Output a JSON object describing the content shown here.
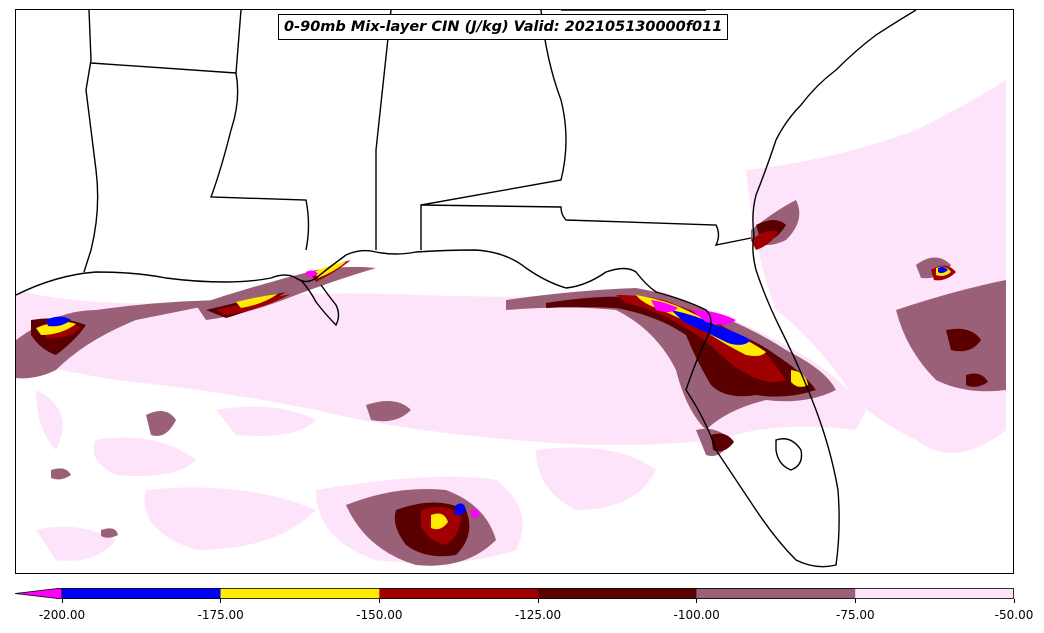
{
  "title": "0-90mb Mix-layer CIN (J/kg) Valid: 202105130000f011",
  "colorbar": {
    "extend_color": "#ff00ff",
    "bins": [
      {
        "from": -200,
        "to": -175,
        "color": "#0000ff"
      },
      {
        "from": -175,
        "to": -150,
        "color": "#ffea00"
      },
      {
        "from": -150,
        "to": -125,
        "color": "#a00000"
      },
      {
        "from": -125,
        "to": -100,
        "color": "#5a0000"
      },
      {
        "from": -100,
        "to": -75,
        "color": "#9a6078"
      },
      {
        "from": -75,
        "to": -50,
        "color": "#fde4fa"
      }
    ],
    "ticks": [
      "-200.00",
      "-175.00",
      "-150.00",
      "-125.00",
      "-100.00",
      "-75.00",
      "-50.00"
    ]
  },
  "colors": {
    "blue": "#0000ff",
    "yellow": "#ffea00",
    "red": "#a00000",
    "darkred": "#5a0000",
    "mauve": "#9a6078",
    "pink": "#fde4fa",
    "magenta": "#ff00ff"
  }
}
